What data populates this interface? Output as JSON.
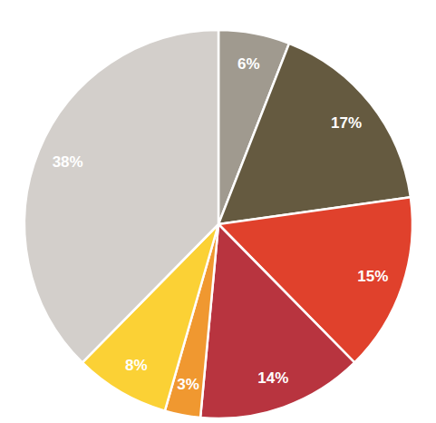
{
  "chart_data": {
    "type": "pie",
    "values": [
      6,
      17,
      15,
      14,
      3,
      8,
      38
    ],
    "value_labels": [
      "6%",
      "17%",
      "15%",
      "14%",
      "3%",
      "8%",
      "38%"
    ],
    "colors": [
      "#a09a8f",
      "#655a40",
      "#e0412c",
      "#b8343f",
      "#f09830",
      "#fbd135",
      "#d3cfcb"
    ],
    "data_labels": true
  }
}
